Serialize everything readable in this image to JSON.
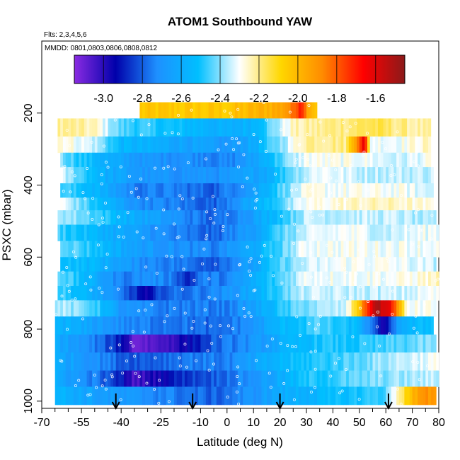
{
  "chart_data": {
    "type": "heatmap",
    "title": "ATOM1 Southbound YAW",
    "subtitle_flights": "Flts: 2,3,4,5,6",
    "subtitle_dates": "MMDD: 0801,0803,0806,0808,0812",
    "xlabel": "Latitude (deg N)",
    "ylabel": "PSXC (mbar)",
    "xlim": [
      -70,
      80
    ],
    "ylim": [
      1020,
      0
    ],
    "x_ticks": [
      -70,
      -55,
      -40,
      -25,
      -10,
      0,
      10,
      20,
      30,
      40,
      50,
      60,
      70,
      80
    ],
    "x_minor_ticks": [
      -65,
      -60,
      -50,
      -45,
      -35,
      -30,
      -20,
      -15,
      -5,
      5,
      15,
      25,
      35,
      45,
      55,
      65,
      75
    ],
    "y_ticks": [
      200,
      400,
      600,
      800,
      1000
    ],
    "colorbar": {
      "range": [
        -3.15,
        -1.45
      ],
      "ticks": [
        -3.0,
        -2.8,
        -2.6,
        -2.4,
        -2.2,
        -2.0,
        -1.8,
        -1.6
      ],
      "tick_labels": [
        "-3.0",
        "-2.8",
        "-2.6",
        "-2.4",
        "-2.2",
        "-2.0",
        "-1.8",
        "-1.6"
      ],
      "colors": [
        "#8a2be2",
        "#0000aa",
        "#1e90ff",
        "#00bfff",
        "#ffffff",
        "#ffd700",
        "#ff8c00",
        "#ff0000",
        "#8b1a1a"
      ]
    },
    "arrows_latitude": [
      -42,
      -13,
      20,
      61
    ],
    "layers": [
      {
        "p_top": 170,
        "p_bot": 215,
        "lat_min": -33,
        "lat_max": 34,
        "nodes": [
          [
            -33,
            -2.05
          ],
          [
            0,
            -2.05
          ],
          [
            10,
            -2.0
          ],
          [
            20,
            -1.95
          ],
          [
            25,
            -1.85
          ],
          [
            28,
            -1.65
          ],
          [
            30,
            -1.9
          ],
          [
            34,
            -2.05
          ]
        ]
      },
      {
        "p_top": 215,
        "p_bot": 265,
        "lat_min": -64,
        "lat_max": 77,
        "nodes": [
          [
            -64,
            -2.2
          ],
          [
            -50,
            -2.25
          ],
          [
            -40,
            -2.45
          ],
          [
            -25,
            -2.5
          ],
          [
            -10,
            -2.55
          ],
          [
            0,
            -2.6
          ],
          [
            10,
            -2.55
          ],
          [
            18,
            -2.4
          ],
          [
            25,
            -2.25
          ],
          [
            40,
            -2.2
          ],
          [
            55,
            -2.15
          ],
          [
            65,
            -2.2
          ],
          [
            77,
            -2.25
          ]
        ]
      },
      {
        "p_top": 265,
        "p_bot": 310,
        "lat_min": -64,
        "lat_max": 77,
        "nodes": [
          [
            -64,
            -2.25
          ],
          [
            -50,
            -2.35
          ],
          [
            -40,
            -2.55
          ],
          [
            -25,
            -2.6
          ],
          [
            -10,
            -2.65
          ],
          [
            0,
            -2.7
          ],
          [
            10,
            -2.6
          ],
          [
            20,
            -2.4
          ],
          [
            30,
            -2.2
          ],
          [
            45,
            -2.2
          ],
          [
            52,
            -1.6
          ],
          [
            54,
            -2.3
          ],
          [
            65,
            -2.3
          ],
          [
            77,
            -2.25
          ]
        ]
      },
      {
        "p_top": 310,
        "p_bot": 350,
        "lat_min": -63,
        "lat_max": 77,
        "nodes": [
          [
            -63,
            -2.4
          ],
          [
            -45,
            -2.6
          ],
          [
            -30,
            -2.7
          ],
          [
            -15,
            -2.7
          ],
          [
            0,
            -2.75
          ],
          [
            10,
            -2.65
          ],
          [
            20,
            -2.45
          ],
          [
            30,
            -2.3
          ],
          [
            50,
            -2.3
          ],
          [
            65,
            -2.35
          ],
          [
            77,
            -2.3
          ]
        ]
      },
      {
        "p_top": 350,
        "p_bot": 395,
        "lat_min": -62,
        "lat_max": 78,
        "nodes": [
          [
            -62,
            -2.35
          ],
          [
            -45,
            -2.6
          ],
          [
            -30,
            -2.7
          ],
          [
            -15,
            -2.7
          ],
          [
            0,
            -2.7
          ],
          [
            15,
            -2.6
          ],
          [
            25,
            -2.4
          ],
          [
            35,
            -2.3
          ],
          [
            50,
            -2.35
          ],
          [
            65,
            -2.35
          ],
          [
            78,
            -2.35
          ]
        ]
      },
      {
        "p_top": 395,
        "p_bot": 435,
        "lat_min": -63,
        "lat_max": 78,
        "nodes": [
          [
            -63,
            -2.45
          ],
          [
            -50,
            -2.55
          ],
          [
            -35,
            -2.75
          ],
          [
            -20,
            -2.75
          ],
          [
            -5,
            -2.8
          ],
          [
            10,
            -2.65
          ],
          [
            20,
            -2.45
          ],
          [
            30,
            -2.3
          ],
          [
            50,
            -2.3
          ],
          [
            65,
            -2.3
          ],
          [
            78,
            -2.35
          ]
        ]
      },
      {
        "p_top": 435,
        "p_bot": 470,
        "lat_min": -63,
        "lat_max": 78,
        "nodes": [
          [
            -63,
            -2.3
          ],
          [
            -50,
            -2.5
          ],
          [
            -35,
            -2.7
          ],
          [
            -20,
            -2.75
          ],
          [
            -5,
            -2.8
          ],
          [
            10,
            -2.6
          ],
          [
            20,
            -2.45
          ],
          [
            30,
            -2.3
          ],
          [
            50,
            -2.25
          ],
          [
            65,
            -2.25
          ],
          [
            78,
            -2.3
          ]
        ]
      },
      {
        "p_top": 470,
        "p_bot": 510,
        "lat_min": -64,
        "lat_max": 79,
        "nodes": [
          [
            -64,
            -2.35
          ],
          [
            -50,
            -2.45
          ],
          [
            -35,
            -2.6
          ],
          [
            -20,
            -2.7
          ],
          [
            -5,
            -2.8
          ],
          [
            10,
            -2.65
          ],
          [
            20,
            -2.5
          ],
          [
            30,
            -2.35
          ],
          [
            50,
            -2.35
          ],
          [
            65,
            -2.35
          ],
          [
            79,
            -2.4
          ]
        ]
      },
      {
        "p_top": 510,
        "p_bot": 555,
        "lat_min": -64,
        "lat_max": 80,
        "nodes": [
          [
            -64,
            -2.45
          ],
          [
            -50,
            -2.55
          ],
          [
            -35,
            -2.65
          ],
          [
            -20,
            -2.75
          ],
          [
            -5,
            -2.8
          ],
          [
            10,
            -2.65
          ],
          [
            20,
            -2.45
          ],
          [
            30,
            -2.35
          ],
          [
            45,
            -2.3
          ],
          [
            60,
            -2.35
          ],
          [
            80,
            -2.3
          ]
        ]
      },
      {
        "p_top": 555,
        "p_bot": 600,
        "lat_min": -63,
        "lat_max": 80,
        "nodes": [
          [
            -63,
            -2.4
          ],
          [
            -50,
            -2.5
          ],
          [
            -35,
            -2.65
          ],
          [
            -20,
            -2.7
          ],
          [
            -5,
            -2.75
          ],
          [
            10,
            -2.6
          ],
          [
            20,
            -2.45
          ],
          [
            30,
            -2.3
          ],
          [
            45,
            -2.3
          ],
          [
            60,
            -2.3
          ],
          [
            80,
            -2.3
          ]
        ]
      },
      {
        "p_top": 600,
        "p_bot": 640,
        "lat_min": -63,
        "lat_max": 79,
        "nodes": [
          [
            -63,
            -2.5
          ],
          [
            -50,
            -2.55
          ],
          [
            -35,
            -2.7
          ],
          [
            -20,
            -2.75
          ],
          [
            -5,
            -2.8
          ],
          [
            10,
            -2.65
          ],
          [
            20,
            -2.45
          ],
          [
            30,
            -2.35
          ],
          [
            45,
            -2.3
          ],
          [
            60,
            -2.3
          ],
          [
            79,
            -2.35
          ]
        ]
      },
      {
        "p_top": 640,
        "p_bot": 680,
        "lat_min": -64,
        "lat_max": 80,
        "nodes": [
          [
            -64,
            -2.4
          ],
          [
            -50,
            -2.6
          ],
          [
            -40,
            -2.75
          ],
          [
            -30,
            -2.7
          ],
          [
            -20,
            -2.75
          ],
          [
            -15,
            -2.9
          ],
          [
            -10,
            -2.75
          ],
          [
            0,
            -2.75
          ],
          [
            10,
            -2.6
          ],
          [
            20,
            -2.45
          ],
          [
            30,
            -2.3
          ],
          [
            50,
            -2.3
          ],
          [
            65,
            -2.3
          ],
          [
            80,
            -2.25
          ]
        ]
      },
      {
        "p_top": 680,
        "p_bot": 720,
        "lat_min": -64,
        "lat_max": 80,
        "nodes": [
          [
            -64,
            -2.45
          ],
          [
            -50,
            -2.6
          ],
          [
            -35,
            -2.85
          ],
          [
            -30,
            -3.0
          ],
          [
            -25,
            -2.8
          ],
          [
            -10,
            -2.75
          ],
          [
            0,
            -2.7
          ],
          [
            10,
            -2.6
          ],
          [
            20,
            -2.45
          ],
          [
            30,
            -2.35
          ],
          [
            50,
            -2.35
          ],
          [
            65,
            -2.35
          ],
          [
            80,
            -2.3
          ]
        ]
      },
      {
        "p_top": 720,
        "p_bot": 765,
        "lat_min": -65,
        "lat_max": 79,
        "nodes": [
          [
            -65,
            -2.35
          ],
          [
            -50,
            -2.45
          ],
          [
            -40,
            -2.7
          ],
          [
            -25,
            -2.75
          ],
          [
            -10,
            -2.75
          ],
          [
            0,
            -2.75
          ],
          [
            10,
            -2.65
          ],
          [
            20,
            -2.5
          ],
          [
            30,
            -2.4
          ],
          [
            45,
            -2.35
          ],
          [
            50,
            -2.0
          ],
          [
            56,
            -1.5
          ],
          [
            62,
            -1.65
          ],
          [
            68,
            -2.3
          ],
          [
            79,
            -2.3
          ]
        ]
      },
      {
        "p_top": 765,
        "p_bot": 815,
        "lat_min": -65,
        "lat_max": 78,
        "nodes": [
          [
            -65,
            -2.55
          ],
          [
            -50,
            -2.65
          ],
          [
            -35,
            -2.75
          ],
          [
            -20,
            -2.75
          ],
          [
            -5,
            -2.8
          ],
          [
            10,
            -2.7
          ],
          [
            20,
            -2.55
          ],
          [
            35,
            -2.45
          ],
          [
            50,
            -2.55
          ],
          [
            55,
            -2.8
          ],
          [
            60,
            -3.0
          ],
          [
            65,
            -2.6
          ],
          [
            78,
            -2.5
          ]
        ]
      },
      {
        "p_top": 815,
        "p_bot": 865,
        "lat_min": -65,
        "lat_max": 79,
        "nodes": [
          [
            -65,
            -2.6
          ],
          [
            -50,
            -2.75
          ],
          [
            -40,
            -2.9
          ],
          [
            -35,
            -3.1
          ],
          [
            -25,
            -3.05
          ],
          [
            -15,
            -2.95
          ],
          [
            -5,
            -2.8
          ],
          [
            10,
            -2.7
          ],
          [
            20,
            -2.6
          ],
          [
            35,
            -2.5
          ],
          [
            50,
            -2.5
          ],
          [
            65,
            -2.45
          ],
          [
            79,
            -2.4
          ]
        ]
      },
      {
        "p_top": 865,
        "p_bot": 915,
        "lat_min": -65,
        "lat_max": 80,
        "nodes": [
          [
            -65,
            -2.6
          ],
          [
            -50,
            -2.7
          ],
          [
            -40,
            -2.8
          ],
          [
            -30,
            -2.8
          ],
          [
            -15,
            -2.75
          ],
          [
            0,
            -2.75
          ],
          [
            10,
            -2.65
          ],
          [
            20,
            -2.55
          ],
          [
            30,
            -2.5
          ],
          [
            45,
            -2.45
          ],
          [
            55,
            -2.4
          ],
          [
            65,
            -2.35
          ],
          [
            80,
            -2.3
          ]
        ]
      },
      {
        "p_top": 915,
        "p_bot": 960,
        "lat_min": -65,
        "lat_max": 80,
        "nodes": [
          [
            -65,
            -2.6
          ],
          [
            -50,
            -2.75
          ],
          [
            -40,
            -2.9
          ],
          [
            -35,
            -3.05
          ],
          [
            -30,
            -3.0
          ],
          [
            -15,
            -2.85
          ],
          [
            -5,
            -2.8
          ],
          [
            10,
            -2.7
          ],
          [
            20,
            -2.6
          ],
          [
            30,
            -2.5
          ],
          [
            45,
            -2.45
          ],
          [
            60,
            -2.4
          ],
          [
            80,
            -2.35
          ]
        ]
      },
      {
        "p_top": 960,
        "p_bot": 1010,
        "lat_min": -65,
        "lat_max": 79,
        "nodes": [
          [
            -65,
            -2.55
          ],
          [
            -50,
            -2.65
          ],
          [
            -35,
            -2.7
          ],
          [
            -20,
            -2.75
          ],
          [
            -5,
            -2.8
          ],
          [
            10,
            -2.7
          ],
          [
            20,
            -2.6
          ],
          [
            35,
            -2.55
          ],
          [
            50,
            -2.5
          ],
          [
            60,
            -2.45
          ],
          [
            65,
            -2.2
          ],
          [
            70,
            -2.0
          ],
          [
            75,
            -1.9
          ],
          [
            79,
            -1.95
          ]
        ]
      }
    ]
  }
}
